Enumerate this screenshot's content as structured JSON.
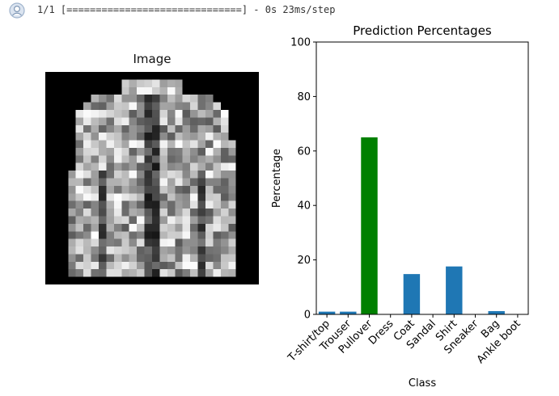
{
  "output": {
    "log_text": "1/1 [==============================] - 0s 23ms/step",
    "avatar_icon": "user-avatar-icon"
  },
  "image_panel": {
    "title": "Image"
  },
  "chart_data": {
    "type": "bar",
    "title": "Prediction Percentages",
    "xlabel": "Class",
    "ylabel": "Percentage",
    "ylim": [
      0,
      100
    ],
    "yticks": [
      0,
      20,
      40,
      60,
      80,
      100
    ],
    "categories": [
      "T-shirt/top",
      "Trouser",
      "Pullover",
      "Dress",
      "Coat",
      "Sandal",
      "Shirt",
      "Sneaker",
      "Bag",
      "Ankle boot"
    ],
    "values": [
      1.0,
      1.0,
      65.0,
      0.1,
      14.8,
      0.0,
      17.6,
      0.0,
      1.2,
      0.1
    ],
    "colors": [
      "#1f77b4",
      "#1f77b4",
      "#008000",
      "#1f77b4",
      "#1f77b4",
      "#1f77b4",
      "#1f77b4",
      "#1f77b4",
      "#1f77b4",
      "#1f77b4"
    ],
    "grid": false,
    "legend": "none"
  }
}
